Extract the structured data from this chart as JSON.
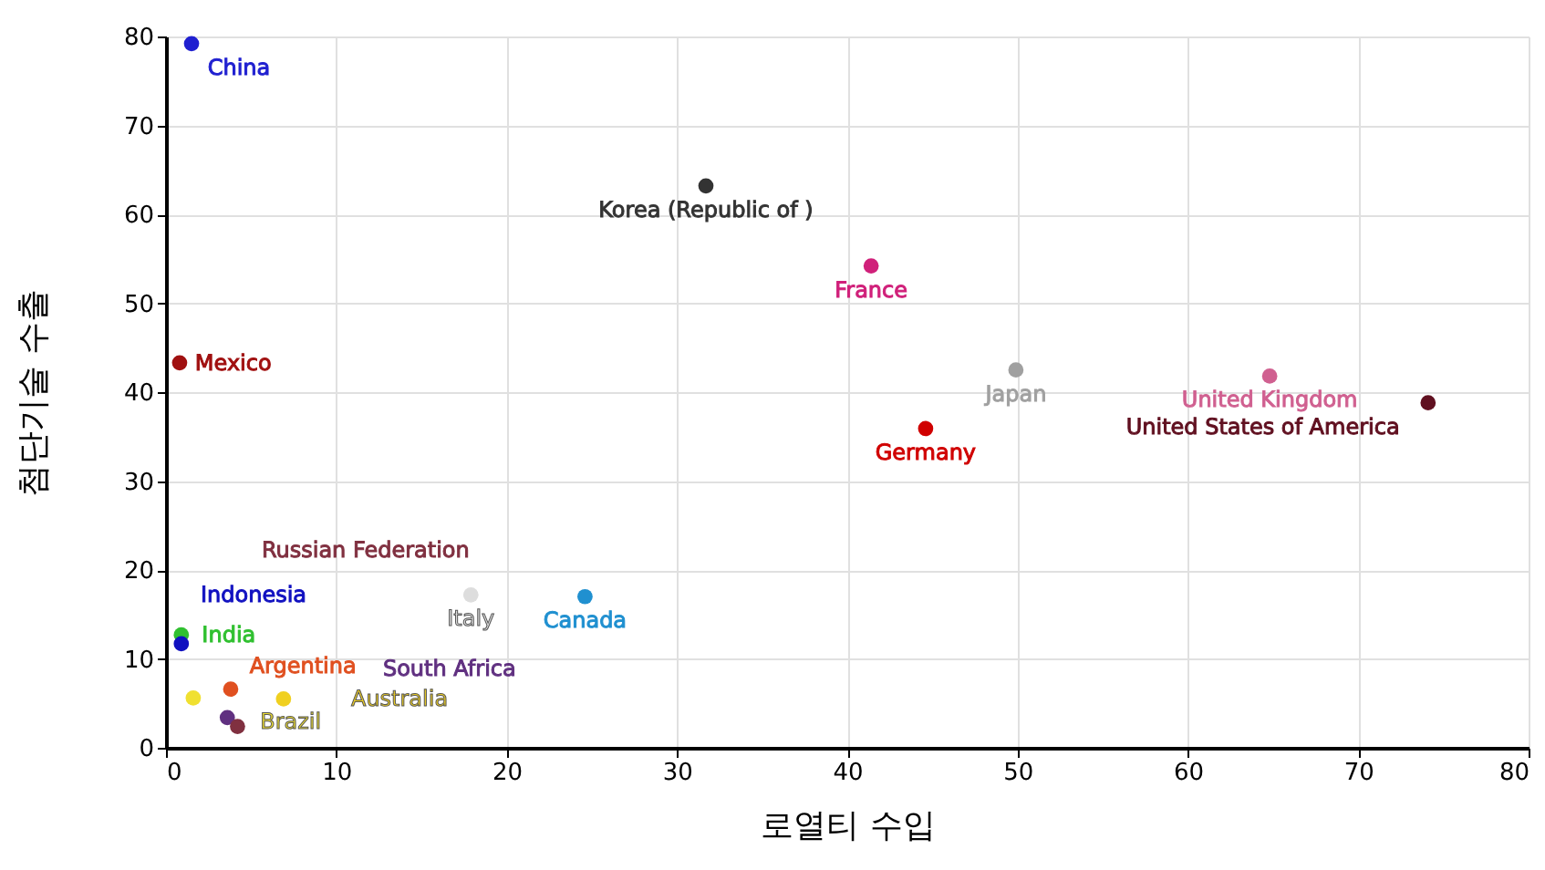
{
  "chart_data": {
    "type": "scatter",
    "xlabel": "로열티 수입",
    "ylabel": "첨단기술 수출",
    "xlim": [
      0,
      80
    ],
    "ylim": [
      0,
      80
    ],
    "xticks": [
      0,
      10,
      20,
      30,
      40,
      50,
      60,
      70,
      80
    ],
    "yticks": [
      0,
      10,
      20,
      30,
      40,
      50,
      60,
      70,
      80
    ],
    "grid": true,
    "legend": false,
    "marker": "circle",
    "series": [
      {
        "name": "China",
        "color": "#2020d0",
        "x": [
          1.5
        ],
        "values": [
          79.2
        ]
      },
      {
        "name": "Korea (Republic of )",
        "color": "#333333",
        "x": [
          31.7
        ],
        "values": [
          63.2
        ]
      },
      {
        "name": "France",
        "color": "#d0207a",
        "x": [
          41.4
        ],
        "values": [
          54.2
        ]
      },
      {
        "name": "Mexico",
        "color": "#a01010",
        "x": [
          0.8
        ],
        "values": [
          43.3
        ]
      },
      {
        "name": "Japan",
        "color": "#a0a0a0",
        "x": [
          49.9
        ],
        "values": [
          42.5
        ]
      },
      {
        "name": "United Kingdom",
        "color": "#d06090",
        "x": [
          64.8
        ],
        "values": [
          41.8
        ]
      },
      {
        "name": "United States of America",
        "color": "#601020",
        "x": [
          74.1
        ],
        "values": [
          38.8
        ]
      },
      {
        "name": "Germany",
        "color": "#d00000",
        "x": [
          44.6
        ],
        "values": [
          35.9
        ]
      },
      {
        "name": "Italy",
        "color": "#dddddd",
        "x": [
          17.9
        ],
        "values": [
          17.2
        ]
      },
      {
        "name": "Canada",
        "color": "#2090d0",
        "x": [
          24.6
        ],
        "values": [
          17.0
        ]
      },
      {
        "name": "India",
        "color": "#30c030",
        "x": [
          0.9
        ],
        "values": [
          12.7
        ]
      },
      {
        "name": "Indonesia",
        "color": "#1010c0",
        "x": [
          0.9
        ],
        "values": [
          11.7
        ]
      },
      {
        "name": "Brazil",
        "color": "#f0e030",
        "x": [
          1.6
        ],
        "values": [
          5.6
        ]
      },
      {
        "name": "Argentina",
        "color": "#e05020",
        "x": [
          3.8
        ],
        "values": [
          6.6
        ]
      },
      {
        "name": "Australia",
        "color": "#f0d020",
        "x": [
          6.9
        ],
        "values": [
          5.5
        ]
      },
      {
        "name": "South Africa",
        "color": "#603080",
        "x": [
          3.6
        ],
        "values": [
          3.4
        ]
      },
      {
        "name": "Russian Federation",
        "color": "#803040",
        "x": [
          4.2
        ],
        "values": [
          2.4
        ]
      }
    ]
  }
}
